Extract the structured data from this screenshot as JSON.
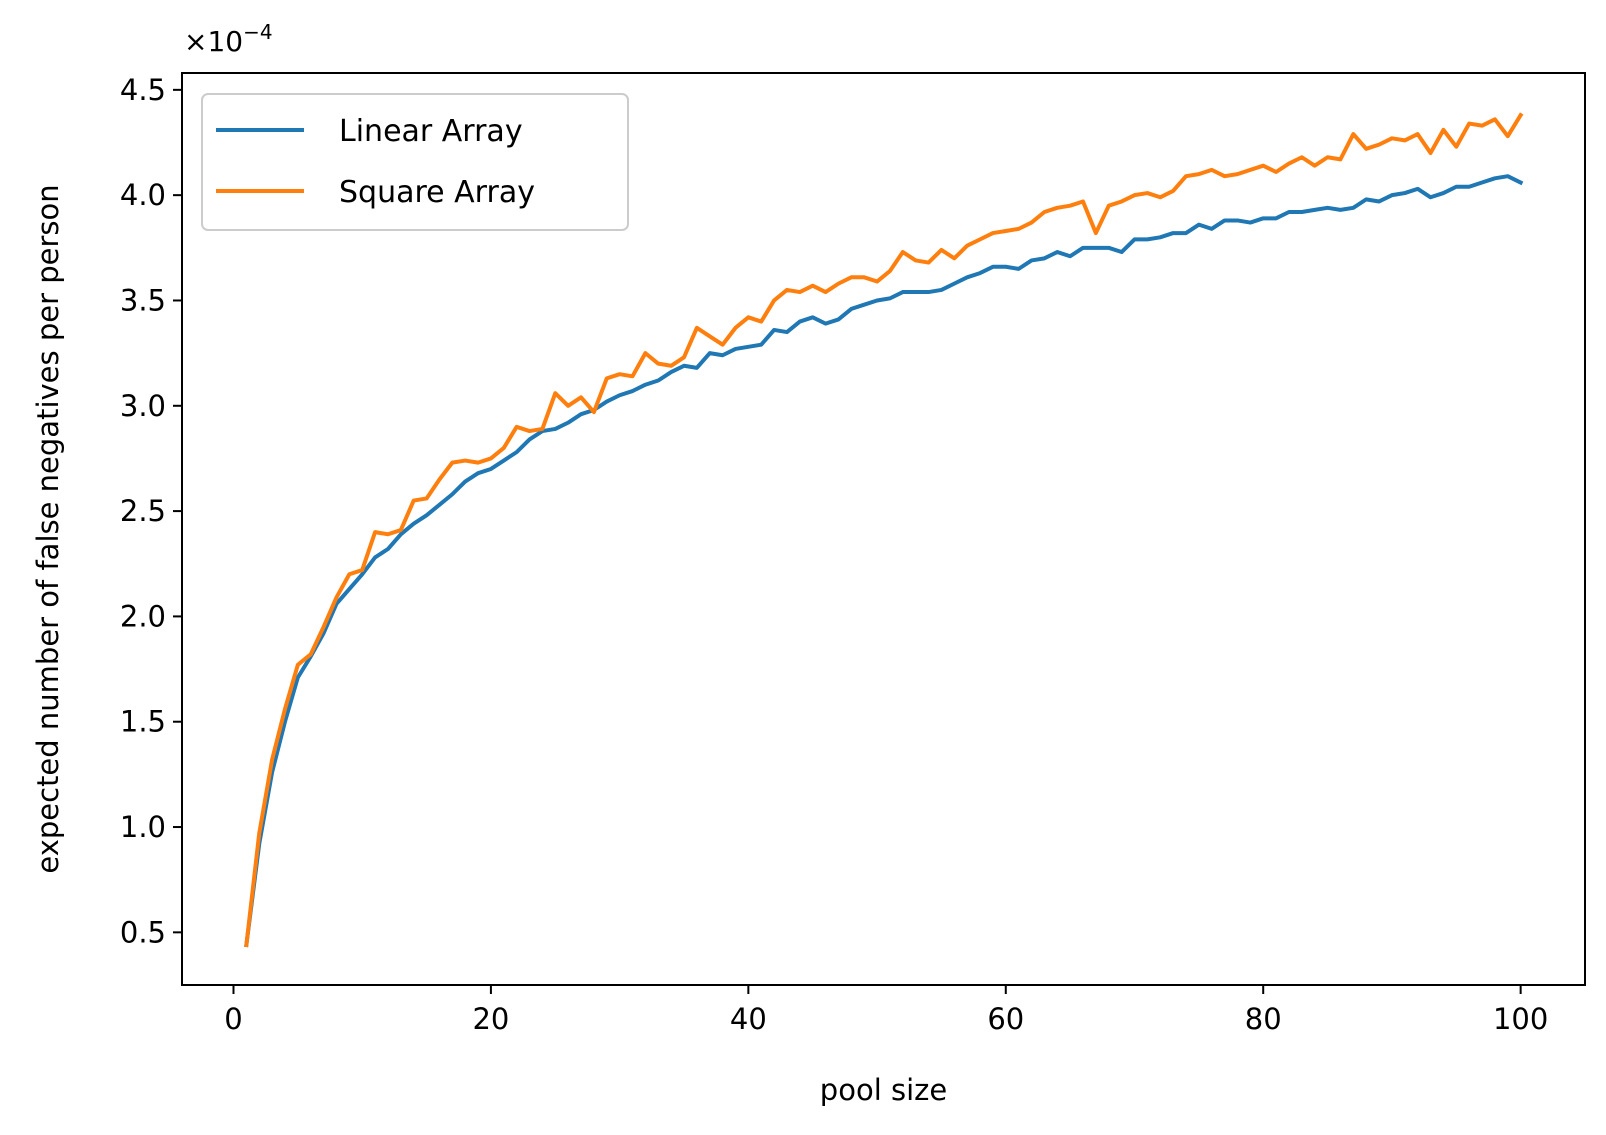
{
  "chart_data": {
    "type": "line",
    "title": "",
    "xlabel": "pool size",
    "ylabel": "expected number of false negatives per person",
    "y_offset_text": "×10",
    "y_offset_exponent": "−4",
    "xlim": [
      -4,
      105
    ],
    "ylim": [
      0.25,
      4.58
    ],
    "x_ticks": [
      0,
      20,
      40,
      60,
      80,
      100
    ],
    "y_ticks": [
      0.5,
      1.0,
      1.5,
      2.0,
      2.5,
      3.0,
      3.5,
      4.0,
      4.5
    ],
    "x_tick_labels": [
      "0",
      "20",
      "40",
      "60",
      "80",
      "100"
    ],
    "y_tick_labels": [
      "0.5",
      "1.0",
      "1.5",
      "2.0",
      "2.5",
      "3.0",
      "3.5",
      "4.0",
      "4.5"
    ],
    "grid": false,
    "legend_position": "top-left",
    "x": [
      1,
      2,
      3,
      4,
      5,
      6,
      7,
      8,
      9,
      10,
      11,
      12,
      13,
      14,
      15,
      16,
      17,
      18,
      19,
      20,
      21,
      22,
      23,
      24,
      25,
      26,
      27,
      28,
      29,
      30,
      31,
      32,
      33,
      34,
      35,
      36,
      37,
      38,
      39,
      40,
      41,
      42,
      43,
      44,
      45,
      46,
      47,
      48,
      49,
      50,
      51,
      52,
      53,
      54,
      55,
      56,
      57,
      58,
      59,
      60,
      61,
      62,
      63,
      64,
      65,
      66,
      67,
      68,
      69,
      70,
      71,
      72,
      73,
      74,
      75,
      76,
      77,
      78,
      79,
      80,
      81,
      82,
      83,
      84,
      85,
      86,
      87,
      88,
      89,
      90,
      91,
      92,
      93,
      94,
      95,
      96,
      97,
      98,
      99,
      100
    ],
    "series": [
      {
        "name": "Linear Array",
        "color": "#1f77b4",
        "values": [
          0.44,
          0.92,
          1.26,
          1.5,
          1.71,
          1.81,
          1.92,
          2.06,
          2.13,
          2.2,
          2.28,
          2.32,
          2.39,
          2.44,
          2.48,
          2.53,
          2.58,
          2.64,
          2.68,
          2.7,
          2.74,
          2.78,
          2.84,
          2.88,
          2.89,
          2.92,
          2.96,
          2.98,
          3.02,
          3.05,
          3.07,
          3.1,
          3.12,
          3.16,
          3.19,
          3.18,
          3.25,
          3.24,
          3.27,
          3.28,
          3.29,
          3.36,
          3.35,
          3.4,
          3.42,
          3.39,
          3.41,
          3.46,
          3.48,
          3.5,
          3.51,
          3.54,
          3.54,
          3.54,
          3.55,
          3.58,
          3.61,
          3.63,
          3.66,
          3.66,
          3.65,
          3.69,
          3.7,
          3.73,
          3.71,
          3.75,
          3.75,
          3.75,
          3.73,
          3.79,
          3.79,
          3.8,
          3.82,
          3.82,
          3.86,
          3.84,
          3.88,
          3.88,
          3.87,
          3.89,
          3.89,
          3.92,
          3.92,
          3.93,
          3.94,
          3.93,
          3.94,
          3.98,
          3.97,
          4.0,
          4.01,
          4.03,
          3.99,
          4.01,
          4.04,
          4.04,
          4.06,
          4.08,
          4.09,
          4.06
        ]
      },
      {
        "name": "Square Array",
        "color": "#ff7f0e",
        "values": [
          0.44,
          0.97,
          1.32,
          1.56,
          1.77,
          1.82,
          1.95,
          2.09,
          2.2,
          2.22,
          2.4,
          2.39,
          2.41,
          2.55,
          2.56,
          2.65,
          2.73,
          2.74,
          2.73,
          2.75,
          2.8,
          2.9,
          2.88,
          2.89,
          3.06,
          3.0,
          3.04,
          2.97,
          3.13,
          3.15,
          3.14,
          3.25,
          3.2,
          3.19,
          3.23,
          3.37,
          3.33,
          3.29,
          3.37,
          3.42,
          3.4,
          3.5,
          3.55,
          3.54,
          3.57,
          3.54,
          3.58,
          3.61,
          3.61,
          3.59,
          3.64,
          3.73,
          3.69,
          3.68,
          3.74,
          3.7,
          3.76,
          3.79,
          3.82,
          3.83,
          3.84,
          3.87,
          3.92,
          3.94,
          3.95,
          3.97,
          3.82,
          3.95,
          3.97,
          4.0,
          4.01,
          3.99,
          4.02,
          4.09,
          4.1,
          4.12,
          4.09,
          4.1,
          4.12,
          4.14,
          4.11,
          4.15,
          4.18,
          4.14,
          4.18,
          4.17,
          4.29,
          4.22,
          4.24,
          4.27,
          4.26,
          4.29,
          4.2,
          4.31,
          4.23,
          4.34,
          4.33,
          4.36,
          4.28,
          4.38
        ]
      }
    ]
  }
}
